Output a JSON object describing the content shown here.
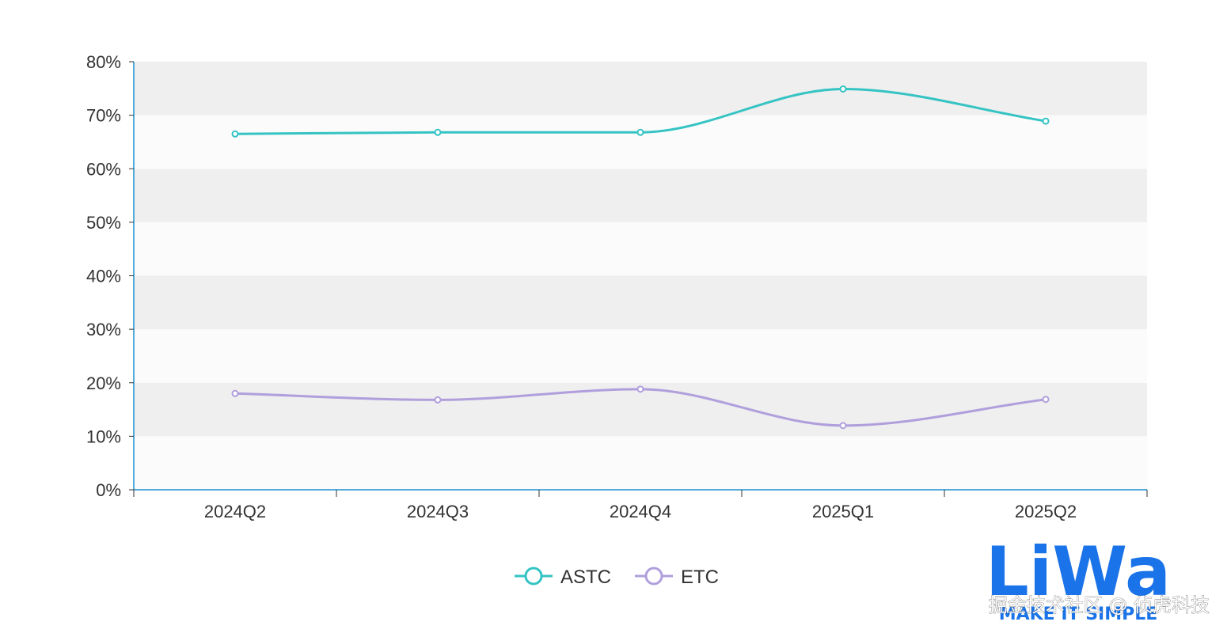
{
  "chart_data": {
    "type": "line",
    "smooth": true,
    "categories": [
      "2024Q2",
      "2024Q3",
      "2024Q4",
      "2025Q1",
      "2025Q2"
    ],
    "series": [
      {
        "name": "ASTC",
        "color": "#35c3c3",
        "values": [
          66.5,
          66.8,
          66.8,
          74.9,
          68.9
        ]
      },
      {
        "name": "ETC",
        "color": "#b09fdc",
        "values": [
          18.0,
          16.8,
          18.8,
          12.0,
          16.9
        ]
      }
    ],
    "y_ticks": [
      "0%",
      "10%",
      "20%",
      "30%",
      "40%",
      "50%",
      "60%",
      "70%",
      "80%"
    ],
    "ylim": [
      0,
      80
    ],
    "y_unit": "%",
    "grid": "alternating-bands",
    "band_colors": [
      "#fbfbfb",
      "#efefef"
    ],
    "axis_color": "#1e90d0",
    "legend_position": "bottom-center"
  },
  "watermark": {
    "logo_text": "LiWa",
    "logo_subtitle": "MAKE IT SIMPLE",
    "logo_color": "#1a73e8",
    "caption": "掘金技术社区 @ 侦虎科技"
  }
}
